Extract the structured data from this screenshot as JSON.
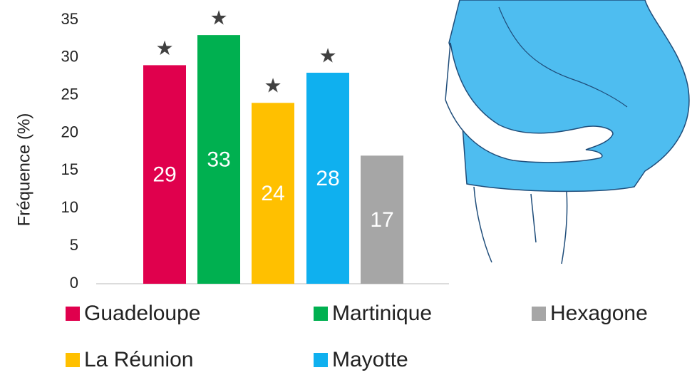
{
  "chart_data": {
    "type": "bar",
    "y_label": "Fréquence (%)",
    "categories": [
      "Guadeloupe",
      "Martinique",
      "La Réunion",
      "Mayotte",
      "Hexagone"
    ],
    "values": [
      29,
      33,
      24,
      28,
      17
    ],
    "colors": [
      "#e0004d",
      "#00b050",
      "#ffc000",
      "#0fb0ef",
      "#a6a6a6"
    ],
    "annotations": [
      "★",
      "★",
      "★",
      "★",
      null
    ],
    "ylim": [
      0,
      35
    ],
    "yticks": [
      0,
      5,
      10,
      15,
      20,
      25,
      30,
      35
    ],
    "grid": false
  }
}
